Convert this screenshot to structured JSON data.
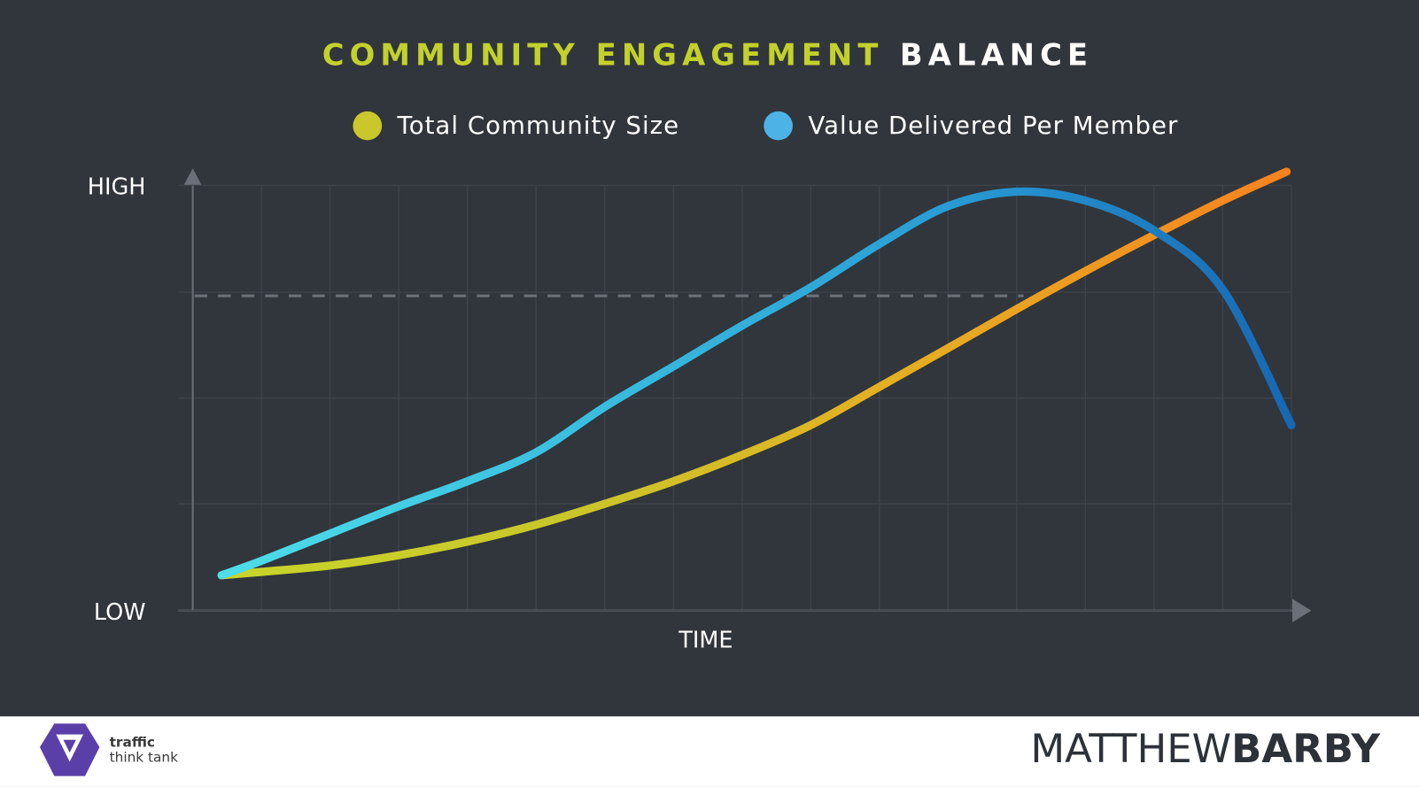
{
  "chart_data": {
    "type": "line",
    "title": {
      "highlight": "COMMUNITY ENGAGEMENT",
      "rest": "BALANCE"
    },
    "xlabel": "TIME",
    "xlim": [
      0,
      16
    ],
    "ylim": [
      0,
      104
    ],
    "yticks": [
      {
        "value": 0,
        "label": "LOW"
      },
      {
        "value": 100,
        "label": "HIGH"
      }
    ],
    "reference_line": {
      "y": 74,
      "x_end": 12.1,
      "color": "#6b7078"
    },
    "series": [
      {
        "name": "Total Community Size",
        "color": "#c9c72b",
        "gradient": [
          "#c8d62a",
          "#c9c72b",
          "#e6ad22",
          "#f7821f"
        ],
        "x": [
          0.42,
          1,
          2,
          3,
          4,
          5,
          6,
          7,
          8,
          9,
          10,
          11,
          12,
          13,
          14,
          15,
          15.93
        ],
        "values": [
          8.3,
          9.1,
          10.6,
          13,
          16.2,
          20.2,
          25.1,
          30.4,
          36.6,
          43.6,
          52.6,
          61.7,
          70.9,
          79.8,
          88.3,
          96.4,
          103.2
        ]
      },
      {
        "name": "Value Delivered Per Member",
        "color": "#4db3e6",
        "gradient": [
          "#4fe0ea",
          "#3bc0e0",
          "#2a9fd6",
          "#1668b4"
        ],
        "x": [
          0.42,
          1,
          2,
          3,
          4,
          5,
          6,
          7,
          8,
          9,
          10,
          11,
          12,
          13,
          14,
          15,
          16
        ],
        "values": [
          8.3,
          11.7,
          18.1,
          24.5,
          30.4,
          37.2,
          47.9,
          57.4,
          67,
          76,
          86.2,
          95.1,
          98.5,
          96.4,
          89.4,
          75.5,
          43.6
        ]
      }
    ]
  },
  "footer": {
    "logo_top": "traffic",
    "logo_bottom": "think tank",
    "brand_light": "MATTHEW",
    "brand_bold": "BARBY"
  }
}
